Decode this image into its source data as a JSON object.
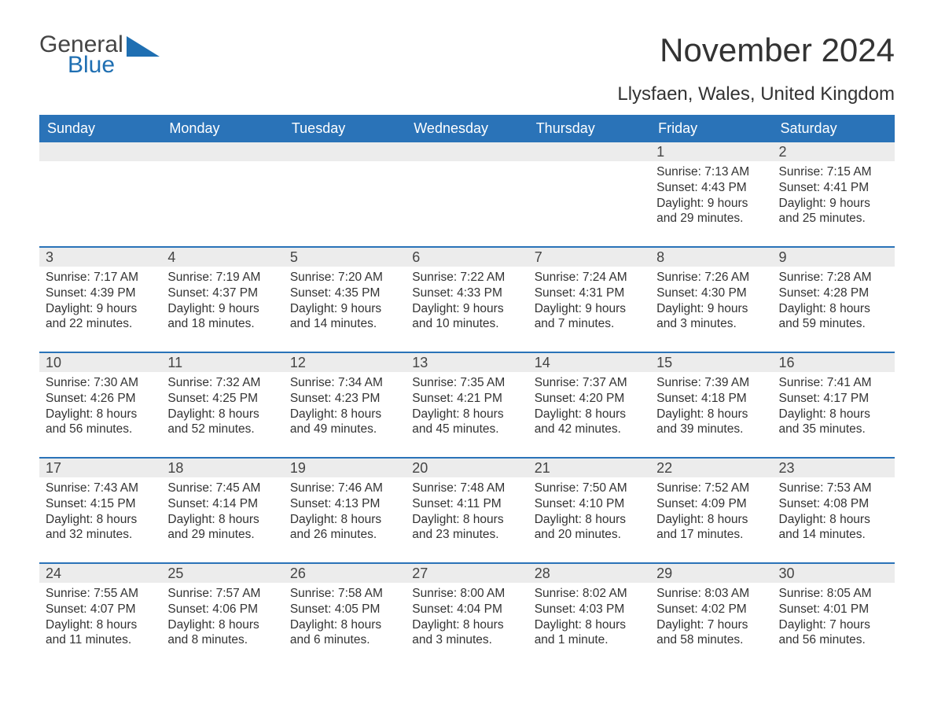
{
  "logo": {
    "part1": "General",
    "part2": "Blue",
    "text_color1": "#444444",
    "text_color2": "#1f6fb2",
    "triangle_color": "#1f6fb2"
  },
  "title": "November 2024",
  "subtitle": "Llysfaen, Wales, United Kingdom",
  "colors": {
    "header_bg": "#2a73b8",
    "header_text": "#ffffff",
    "daynum_bg": "#ececec",
    "border": "#2a73b8",
    "body_text": "#333333",
    "background": "#ffffff"
  },
  "fonts": {
    "title_size": 42,
    "subtitle_size": 24,
    "header_size": 18,
    "daynum_size": 18,
    "body_size": 15.5
  },
  "day_headers": [
    "Sunday",
    "Monday",
    "Tuesday",
    "Wednesday",
    "Thursday",
    "Friday",
    "Saturday"
  ],
  "weeks": [
    [
      {
        "num": "",
        "sunrise": "",
        "sunset": "",
        "daylight": ""
      },
      {
        "num": "",
        "sunrise": "",
        "sunset": "",
        "daylight": ""
      },
      {
        "num": "",
        "sunrise": "",
        "sunset": "",
        "daylight": ""
      },
      {
        "num": "",
        "sunrise": "",
        "sunset": "",
        "daylight": ""
      },
      {
        "num": "",
        "sunrise": "",
        "sunset": "",
        "daylight": ""
      },
      {
        "num": "1",
        "sunrise": "Sunrise: 7:13 AM",
        "sunset": "Sunset: 4:43 PM",
        "daylight": "Daylight: 9 hours and 29 minutes."
      },
      {
        "num": "2",
        "sunrise": "Sunrise: 7:15 AM",
        "sunset": "Sunset: 4:41 PM",
        "daylight": "Daylight: 9 hours and 25 minutes."
      }
    ],
    [
      {
        "num": "3",
        "sunrise": "Sunrise: 7:17 AM",
        "sunset": "Sunset: 4:39 PM",
        "daylight": "Daylight: 9 hours and 22 minutes."
      },
      {
        "num": "4",
        "sunrise": "Sunrise: 7:19 AM",
        "sunset": "Sunset: 4:37 PM",
        "daylight": "Daylight: 9 hours and 18 minutes."
      },
      {
        "num": "5",
        "sunrise": "Sunrise: 7:20 AM",
        "sunset": "Sunset: 4:35 PM",
        "daylight": "Daylight: 9 hours and 14 minutes."
      },
      {
        "num": "6",
        "sunrise": "Sunrise: 7:22 AM",
        "sunset": "Sunset: 4:33 PM",
        "daylight": "Daylight: 9 hours and 10 minutes."
      },
      {
        "num": "7",
        "sunrise": "Sunrise: 7:24 AM",
        "sunset": "Sunset: 4:31 PM",
        "daylight": "Daylight: 9 hours and 7 minutes."
      },
      {
        "num": "8",
        "sunrise": "Sunrise: 7:26 AM",
        "sunset": "Sunset: 4:30 PM",
        "daylight": "Daylight: 9 hours and 3 minutes."
      },
      {
        "num": "9",
        "sunrise": "Sunrise: 7:28 AM",
        "sunset": "Sunset: 4:28 PM",
        "daylight": "Daylight: 8 hours and 59 minutes."
      }
    ],
    [
      {
        "num": "10",
        "sunrise": "Sunrise: 7:30 AM",
        "sunset": "Sunset: 4:26 PM",
        "daylight": "Daylight: 8 hours and 56 minutes."
      },
      {
        "num": "11",
        "sunrise": "Sunrise: 7:32 AM",
        "sunset": "Sunset: 4:25 PM",
        "daylight": "Daylight: 8 hours and 52 minutes."
      },
      {
        "num": "12",
        "sunrise": "Sunrise: 7:34 AM",
        "sunset": "Sunset: 4:23 PM",
        "daylight": "Daylight: 8 hours and 49 minutes."
      },
      {
        "num": "13",
        "sunrise": "Sunrise: 7:35 AM",
        "sunset": "Sunset: 4:21 PM",
        "daylight": "Daylight: 8 hours and 45 minutes."
      },
      {
        "num": "14",
        "sunrise": "Sunrise: 7:37 AM",
        "sunset": "Sunset: 4:20 PM",
        "daylight": "Daylight: 8 hours and 42 minutes."
      },
      {
        "num": "15",
        "sunrise": "Sunrise: 7:39 AM",
        "sunset": "Sunset: 4:18 PM",
        "daylight": "Daylight: 8 hours and 39 minutes."
      },
      {
        "num": "16",
        "sunrise": "Sunrise: 7:41 AM",
        "sunset": "Sunset: 4:17 PM",
        "daylight": "Daylight: 8 hours and 35 minutes."
      }
    ],
    [
      {
        "num": "17",
        "sunrise": "Sunrise: 7:43 AM",
        "sunset": "Sunset: 4:15 PM",
        "daylight": "Daylight: 8 hours and 32 minutes."
      },
      {
        "num": "18",
        "sunrise": "Sunrise: 7:45 AM",
        "sunset": "Sunset: 4:14 PM",
        "daylight": "Daylight: 8 hours and 29 minutes."
      },
      {
        "num": "19",
        "sunrise": "Sunrise: 7:46 AM",
        "sunset": "Sunset: 4:13 PM",
        "daylight": "Daylight: 8 hours and 26 minutes."
      },
      {
        "num": "20",
        "sunrise": "Sunrise: 7:48 AM",
        "sunset": "Sunset: 4:11 PM",
        "daylight": "Daylight: 8 hours and 23 minutes."
      },
      {
        "num": "21",
        "sunrise": "Sunrise: 7:50 AM",
        "sunset": "Sunset: 4:10 PM",
        "daylight": "Daylight: 8 hours and 20 minutes."
      },
      {
        "num": "22",
        "sunrise": "Sunrise: 7:52 AM",
        "sunset": "Sunset: 4:09 PM",
        "daylight": "Daylight: 8 hours and 17 minutes."
      },
      {
        "num": "23",
        "sunrise": "Sunrise: 7:53 AM",
        "sunset": "Sunset: 4:08 PM",
        "daylight": "Daylight: 8 hours and 14 minutes."
      }
    ],
    [
      {
        "num": "24",
        "sunrise": "Sunrise: 7:55 AM",
        "sunset": "Sunset: 4:07 PM",
        "daylight": "Daylight: 8 hours and 11 minutes."
      },
      {
        "num": "25",
        "sunrise": "Sunrise: 7:57 AM",
        "sunset": "Sunset: 4:06 PM",
        "daylight": "Daylight: 8 hours and 8 minutes."
      },
      {
        "num": "26",
        "sunrise": "Sunrise: 7:58 AM",
        "sunset": "Sunset: 4:05 PM",
        "daylight": "Daylight: 8 hours and 6 minutes."
      },
      {
        "num": "27",
        "sunrise": "Sunrise: 8:00 AM",
        "sunset": "Sunset: 4:04 PM",
        "daylight": "Daylight: 8 hours and 3 minutes."
      },
      {
        "num": "28",
        "sunrise": "Sunrise: 8:02 AM",
        "sunset": "Sunset: 4:03 PM",
        "daylight": "Daylight: 8 hours and 1 minute."
      },
      {
        "num": "29",
        "sunrise": "Sunrise: 8:03 AM",
        "sunset": "Sunset: 4:02 PM",
        "daylight": "Daylight: 7 hours and 58 minutes."
      },
      {
        "num": "30",
        "sunrise": "Sunrise: 8:05 AM",
        "sunset": "Sunset: 4:01 PM",
        "daylight": "Daylight: 7 hours and 56 minutes."
      }
    ]
  ]
}
